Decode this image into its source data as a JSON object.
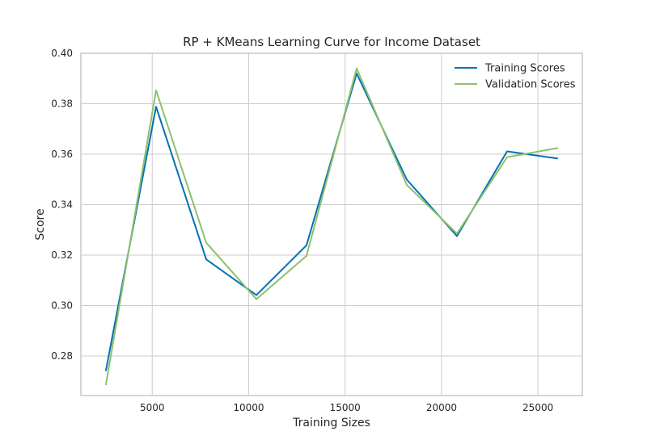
{
  "chart_data": {
    "type": "line",
    "title": "RP + KMeans Learning Curve for Income Dataset",
    "xlabel": "Training Sizes",
    "ylabel": "Score",
    "xlim": [
      1300,
      27300
    ],
    "ylim": [
      0.2643,
      0.4
    ],
    "xticks": [
      5000,
      10000,
      15000,
      20000,
      25000
    ],
    "xtick_labels": [
      "5000",
      "10000",
      "15000",
      "20000",
      "25000"
    ],
    "yticks": [
      0.28,
      0.3,
      0.32,
      0.34,
      0.36,
      0.38,
      0.4
    ],
    "ytick_labels": [
      "0.28",
      "0.30",
      "0.32",
      "0.34",
      "0.36",
      "0.38",
      "0.40"
    ],
    "grid": true,
    "legend_position": "top-right",
    "x": [
      2600,
      5200,
      7800,
      10400,
      13000,
      15600,
      18200,
      20800,
      23400,
      26000
    ],
    "series": [
      {
        "name": "Training Scores",
        "color": "#0072b2",
        "values": [
          0.2743,
          0.3788,
          0.3183,
          0.3041,
          0.3239,
          0.392,
          0.3499,
          0.3275,
          0.3611,
          0.3583
        ]
      },
      {
        "name": "Validation Scores",
        "color": "#8fc06a",
        "values": [
          0.2687,
          0.3853,
          0.3249,
          0.3025,
          0.3197,
          0.394,
          0.3478,
          0.3285,
          0.3588,
          0.3624
        ]
      }
    ]
  }
}
